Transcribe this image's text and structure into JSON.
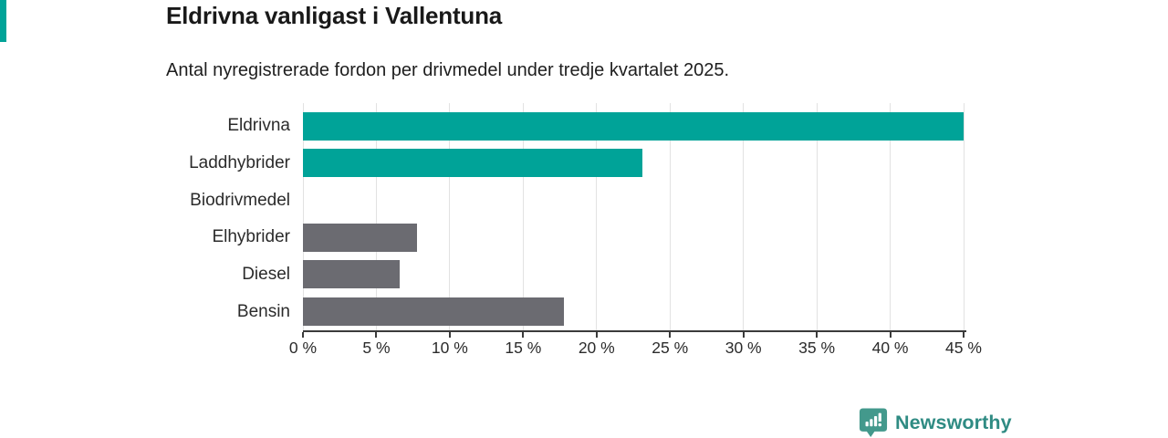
{
  "chart_data": {
    "type": "bar",
    "orientation": "horizontal",
    "title": "Eldrivna vanligast i Vallentuna",
    "subtitle": "Antal nyregistrerade fordon per drivmedel under tredje kvartalet 2025.",
    "categories": [
      "Eldrivna",
      "Laddhybrider",
      "Biodrivmedel",
      "Elhybrider",
      "Diesel",
      "Bensin"
    ],
    "values": [
      45.0,
      23.1,
      0.0,
      7.8,
      6.6,
      17.8
    ],
    "unit": "%",
    "bar_colors": [
      "#00a398",
      "#00a398",
      "#00a398",
      "#6b6b71",
      "#6b6b71",
      "#6b6b71"
    ],
    "xlabel": "",
    "ylabel": "",
    "xlim": [
      0,
      45
    ],
    "x_ticks": [
      0,
      5,
      10,
      15,
      20,
      25,
      30,
      35,
      40,
      45
    ],
    "x_tick_labels": [
      "0 %",
      "5 %",
      "10 %",
      "15 %",
      "20 %",
      "25 %",
      "30 %",
      "35 %",
      "40 %",
      "45 %"
    ],
    "grid": true,
    "legend": false
  },
  "footer": {
    "brand": "Newsworthy"
  },
  "colors": {
    "accent_teal": "#00a398",
    "bar_gray": "#6b6b71",
    "gridline": "#e2e2e2",
    "axis": "#3b3b3b",
    "logo_icon": "#43998c",
    "logo_text": "#2f8b83"
  }
}
